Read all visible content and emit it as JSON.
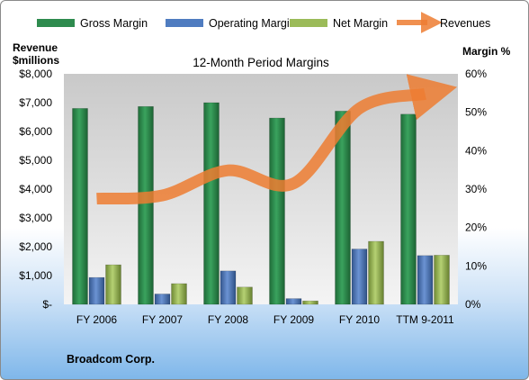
{
  "chart_data": {
    "type": "bar",
    "title": "12-Month Period Margins",
    "company": "Broadcom Corp.",
    "categories": [
      "FY 2006",
      "FY 2007",
      "FY 2008",
      "FY 2009",
      "FY 2010",
      "TTM 9-2011"
    ],
    "left_axis": {
      "title_line1": "Revenue",
      "title_line2": "$millions",
      "ylim": [
        0,
        8000
      ],
      "tick_labels": [
        "$-",
        "$1,000",
        "$2,000",
        "$3,000",
        "$4,000",
        "$5,000",
        "$6,000",
        "$7,000",
        "$8,000"
      ]
    },
    "right_axis": {
      "title": "Margin %",
      "ylim": [
        0,
        60
      ],
      "tick_labels": [
        "0%",
        "10%",
        "20%",
        "30%",
        "40%",
        "50%",
        "60%"
      ]
    },
    "series": [
      {
        "name": "Gross Margin",
        "axis": "right",
        "type": "bar",
        "color": "#2e8b4e",
        "values": [
          51,
          51.5,
          52.5,
          48.5,
          50.3,
          49.5
        ]
      },
      {
        "name": "Operating Margin",
        "axis": "right",
        "type": "bar",
        "color": "#4f7cc0",
        "values": [
          7,
          2.7,
          8.7,
          1.5,
          14.4,
          12.7
        ]
      },
      {
        "name": "Net Margin",
        "axis": "right",
        "type": "bar",
        "color": "#9bbb59",
        "values": [
          10.3,
          5.4,
          4.5,
          0.9,
          16.4,
          12.8
        ]
      },
      {
        "name": "Revenues",
        "axis": "left",
        "type": "line",
        "color": "#ed7d31",
        "values": [
          3670,
          3780,
          4650,
          4200,
          6800,
          7300
        ]
      }
    ],
    "legend_position": "top",
    "grid": false
  }
}
